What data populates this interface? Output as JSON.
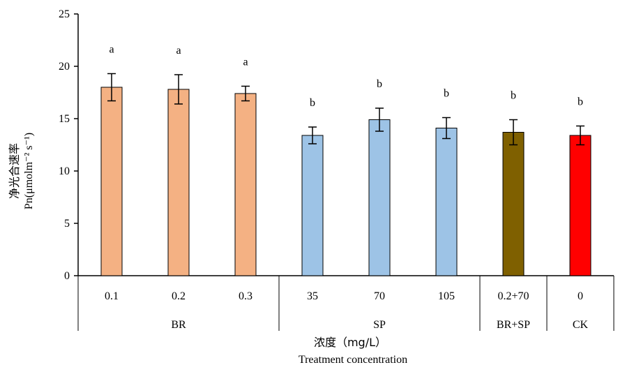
{
  "chart_data": {
    "type": "bar",
    "title": "",
    "ylabel_cn": "净光合速率",
    "ylabel_en": "Pn(μmolm⁻² s⁻¹)",
    "xlabel_cn": "浓度（mg/L）",
    "xlabel_en": "Treatment concentration",
    "ylim": [
      0,
      25
    ],
    "yticks": [
      0,
      5,
      10,
      15,
      20,
      25
    ],
    "categories": [
      "0.1",
      "0.2",
      "0.3",
      "35",
      "70",
      "105",
      "0.2+70",
      "0"
    ],
    "values": [
      18.0,
      17.8,
      17.4,
      13.4,
      14.9,
      14.1,
      13.7,
      13.4
    ],
    "errors": [
      1.3,
      1.4,
      0.7,
      0.8,
      1.1,
      1.0,
      1.2,
      0.9
    ],
    "significance": [
      "a",
      "a",
      "a",
      "b",
      "b",
      "b",
      "b",
      "b"
    ],
    "groups": [
      {
        "name": "BR",
        "start": 0,
        "end": 2,
        "color": "#F4B183"
      },
      {
        "name": "SP",
        "start": 3,
        "end": 5,
        "color": "#9DC3E6"
      },
      {
        "name": "BR+SP",
        "start": 6,
        "end": 6,
        "color": "#7F6000"
      },
      {
        "name": "CK",
        "start": 7,
        "end": 7,
        "color": "#FF0000"
      }
    ],
    "grid": false,
    "legend": "none"
  }
}
